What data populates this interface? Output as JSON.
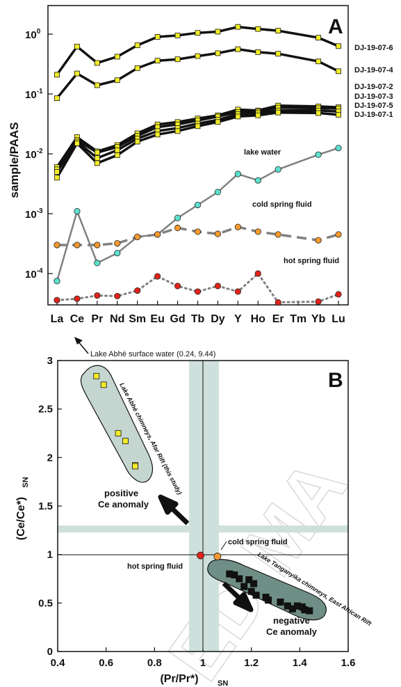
{
  "panel_a": {
    "letter": "A",
    "ylabel": "sample/PAAS",
    "elements": [
      "La",
      "Ce",
      "Pr",
      "Nd",
      "Sm",
      "Eu",
      "Gd",
      "Tb",
      "Dy",
      "Y",
      "Ho",
      "Er",
      "Tm",
      "Yb",
      "Lu"
    ],
    "ytick_labels": [
      {
        "base": "10",
        "exp": "0",
        "value": 1
      },
      {
        "base": "10",
        "exp": "-1",
        "value": 0.1
      },
      {
        "base": "10",
        "exp": "-2",
        "value": 0.01
      },
      {
        "base": "10",
        "exp": "-3",
        "value": 0.001
      },
      {
        "base": "10",
        "exp": "-4",
        "value": 0.0001
      }
    ],
    "annotations": {
      "lake_water": "lake water",
      "cold_spring": "cold spring fluid",
      "hot_spring": "hot spring fluid"
    }
  },
  "panel_b": {
    "letter": "B",
    "ylabel": "(Ce/Ce*)",
    "ylabel_sub": "SN",
    "xlabel": "(Pr/Pr*)",
    "xlabel_sub": "SN",
    "xticks": [
      "0.4",
      "0.6",
      "0.8",
      "1",
      "1.2",
      "1.4",
      "1.6"
    ],
    "yticks": [
      "0",
      "0.5",
      "1",
      "1.5",
      "2",
      "2.5",
      "3"
    ],
    "annotations": {
      "surface_water": "Lake Abhé surface water (0.24, 9.44)",
      "abhe_region": "Lake Abhé chimneys, Afar Rift (this study)",
      "tanganyika_region": "Lake Tanganyika chimneys, East African Rift",
      "positive_1": "positive",
      "positive_2": "Ce anomaly",
      "negative_1": "negative",
      "negative_2": "Ce anomaly",
      "cold_spring": "cold spring fluid",
      "hot_spring": "hot spring fluid"
    }
  },
  "watermark": "ED MA",
  "colors": {
    "sample_marker": "#f2ec2a",
    "lake_water_marker": "#5ee0cf",
    "cold_spring_marker": "#f59a2e",
    "hot_spring_marker": "#e0241b",
    "series_line": "#111111",
    "fluid_line": "#808080",
    "band": "#cfe0dc",
    "tanganyika_fill": "#6f8e86",
    "abhe_fill": "#c5d6d1"
  },
  "chart_data": [
    {
      "type": "line",
      "title": "A",
      "xlabel": "",
      "ylabel": "sample/PAAS",
      "yscale": "log",
      "ylim": [
        3e-05,
        3
      ],
      "categories": [
        "La",
        "Ce",
        "Pr",
        "Nd",
        "Sm",
        "Eu",
        "Gd",
        "Tb",
        "Dy",
        "Y",
        "Ho",
        "Er",
        "Tm",
        "Yb",
        "Lu"
      ],
      "series": [
        {
          "name": "DJ-19-07-6",
          "values": [
            0.21,
            0.62,
            0.33,
            0.42,
            0.65,
            0.9,
            0.95,
            1.05,
            1.1,
            1.32,
            1.22,
            1.14,
            null,
            0.87,
            0.63
          ]
        },
        {
          "name": "DJ-19-07-4",
          "values": [
            0.085,
            0.22,
            0.14,
            0.17,
            0.27,
            0.36,
            0.38,
            0.43,
            0.48,
            0.56,
            0.5,
            0.47,
            null,
            0.35,
            0.24
          ]
        },
        {
          "name": "DJ-19-07-2",
          "values": [
            0.006,
            0.019,
            0.011,
            0.014,
            0.022,
            0.031,
            0.034,
            0.039,
            0.044,
            0.055,
            0.053,
            0.064,
            null,
            0.062,
            0.06
          ]
        },
        {
          "name": "DJ-19-07-3",
          "values": [
            0.0055,
            0.017,
            0.0105,
            0.013,
            0.02,
            0.028,
            0.031,
            0.036,
            0.042,
            0.05,
            0.051,
            0.059,
            null,
            0.058,
            0.057
          ]
        },
        {
          "name": "DJ-19-07-5",
          "values": [
            0.005,
            0.016,
            0.0085,
            0.0115,
            0.018,
            0.024,
            0.027,
            0.032,
            0.037,
            0.046,
            0.048,
            0.053,
            null,
            0.053,
            0.051
          ]
        },
        {
          "name": "DJ-19-07-1",
          "values": [
            0.004,
            0.015,
            0.007,
            0.0095,
            0.016,
            0.021,
            0.024,
            0.029,
            0.034,
            0.042,
            0.044,
            0.049,
            null,
            0.048,
            0.045
          ]
        },
        {
          "name": "lake water",
          "values": [
            7.5e-05,
            0.0011,
            0.00015,
            0.00022,
            0.00041,
            0.00045,
            0.00085,
            0.0014,
            0.0023,
            0.0046,
            0.0036,
            0.0055,
            null,
            0.0097,
            0.0125
          ]
        },
        {
          "name": "cold spring fluid",
          "values": [
            0.0003,
            0.0003,
            0.0003,
            0.00032,
            0.00041,
            0.00045,
            0.00058,
            0.0005,
            0.00046,
            0.0006,
            0.0005,
            0.00045,
            null,
            0.00036,
            0.00045
          ]
        },
        {
          "name": "hot spring fluid",
          "values": [
            3.6e-05,
            3.8e-05,
            4.3e-05,
            4.2e-05,
            5.2e-05,
            9e-05,
            6.2e-05,
            5e-05,
            6.2e-05,
            5e-05,
            0.0001,
            3.3e-05,
            null,
            3.4e-05,
            4.5e-05
          ]
        }
      ]
    },
    {
      "type": "scatter",
      "title": "B",
      "xlabel": "(Pr/Pr*) SN",
      "ylabel": "(Ce/Ce*) SN",
      "xlim": [
        0.4,
        1.6
      ],
      "ylim": [
        0,
        3
      ],
      "series": [
        {
          "name": "Lake Abhé chimneys, Afar Rift (this study)",
          "points": [
            [
              0.56,
              2.84
            ],
            [
              0.59,
              2.75
            ],
            [
              0.65,
              2.25
            ],
            [
              0.68,
              2.17
            ],
            [
              0.72,
              1.92
            ],
            [
              0.72,
              1.91
            ]
          ]
        },
        {
          "name": "Lake Tanganyika chimneys, East African Rift",
          "points": [
            [
              1.11,
              0.8
            ],
            [
              1.13,
              0.79
            ],
            [
              1.15,
              0.75
            ],
            [
              1.17,
              0.67
            ],
            [
              1.19,
              0.74
            ],
            [
              1.21,
              0.7
            ],
            [
              1.2,
              0.62
            ],
            [
              1.22,
              0.58
            ],
            [
              1.27,
              0.53
            ],
            [
              1.26,
              0.56
            ],
            [
              1.32,
              0.51
            ],
            [
              1.35,
              0.47
            ],
            [
              1.37,
              0.44
            ],
            [
              1.39,
              0.47
            ],
            [
              1.41,
              0.46
            ],
            [
              1.42,
              0.43
            ],
            [
              1.44,
              0.42
            ]
          ]
        },
        {
          "name": "cold spring fluid",
          "points": [
            [
              1.06,
              0.98
            ]
          ]
        },
        {
          "name": "hot spring fluid",
          "points": [
            [
              0.99,
              0.99
            ]
          ]
        }
      ]
    }
  ]
}
